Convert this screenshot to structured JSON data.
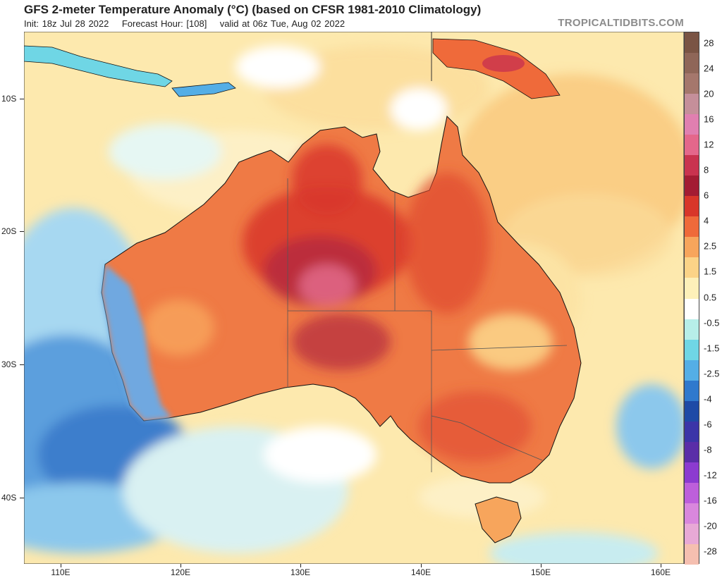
{
  "header": {
    "title": "GFS 2-meter Temperature Anomaly (°C) (based on CFSR 1981-2010 Climatology)",
    "init": "Init: 18z Jul 28 2022",
    "forecast_hour": "Forecast Hour: [108]",
    "valid": "valid at 06z Tue, Aug 02 2022",
    "source": "TROPICALTIDBITS.COM"
  },
  "map": {
    "lat_labels": [
      "10S",
      "20S",
      "30S",
      "40S"
    ],
    "lon_labels": [
      "110E",
      "120E",
      "130E",
      "140E",
      "150E",
      "160E"
    ]
  },
  "colorbar": {
    "labels": [
      "28",
      "24",
      "20",
      "16",
      "12",
      "8",
      "6",
      "4",
      "2.5",
      "1.5",
      "0.5",
      "-0.5",
      "-1.5",
      "-2.5",
      "-4",
      "-6",
      "-8",
      "-12",
      "-16",
      "-20",
      "-28"
    ],
    "colors": [
      "#7a5444",
      "#8f6658",
      "#a5776c",
      "#c58f9a",
      "#e07fb0",
      "#e4678b",
      "#c9334f",
      "#a31c33",
      "#d8362a",
      "#ef6a3a",
      "#f7a55c",
      "#fbd387",
      "#fdf0b9",
      "#ffffff",
      "#b7eee9",
      "#6fd6e5",
      "#54aee6",
      "#2f79cd",
      "#1e4aa6",
      "#3b35a8",
      "#5a2ea8",
      "#8c3bd0",
      "#bd5fdb",
      "#d987dd",
      "#e8a9d6",
      "#f5bfb0"
    ]
  }
}
